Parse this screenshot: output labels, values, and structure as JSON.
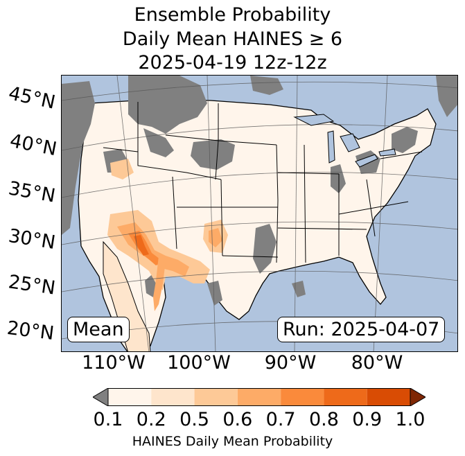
{
  "title": {
    "line1": "Ensemble Probability",
    "line2": "Daily Mean HAINES ≥ 6",
    "line3": "2025-04-19 12z-12z"
  },
  "map": {
    "ocean_color": "#b0c4de",
    "land_color": "#ffffff",
    "missing_color": "#808080",
    "lat_labels": [
      "45°N",
      "40°N",
      "35°N",
      "30°N",
      "25°N",
      "20°N"
    ],
    "lon_labels": [
      "110°W",
      "100°W",
      "90°W",
      "80°W"
    ],
    "stat_label": "Mean",
    "run_label": "Run: 2025-04-07"
  },
  "colorbar": {
    "ticks": [
      "0.1",
      "0.2",
      "0.5",
      "0.6",
      "0.7",
      "0.8",
      "0.9",
      "1.0"
    ],
    "colors": [
      "#fff5eb",
      "#fee5cc",
      "#fdc997",
      "#fdab67",
      "#fa8a3b",
      "#ee6a1a",
      "#d94c04"
    ],
    "under_color": "#808080",
    "over_color": "#7f2704",
    "label": "HAINES Daily Mean Probability"
  }
}
